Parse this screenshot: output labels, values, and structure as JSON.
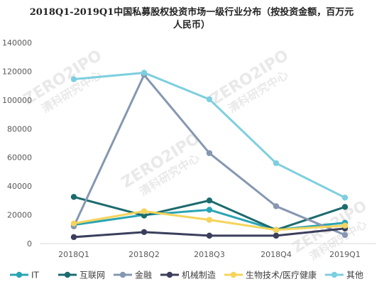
{
  "chart_data": {
    "type": "line",
    "title": "2018Q1-2019Q1中国私募股权投资市场一级行业分布（按投资金额，百万元人民币）",
    "title_lines": [
      "2018Q1-2019Q1中国私募股权投资市场一级行业分布（按投资金额，百万元",
      "人民币）"
    ],
    "categories": [
      "2018Q1",
      "2018Q2",
      "2018Q3",
      "2018Q4",
      "2019Q1"
    ],
    "ylim": [
      0,
      140000
    ],
    "yticks": [
      "0",
      "20000",
      "40000",
      "60000",
      "80000",
      "100000",
      "120000",
      "140000"
    ],
    "ytick_values": [
      0,
      20000,
      40000,
      60000,
      80000,
      100000,
      120000,
      140000
    ],
    "grid": false,
    "legend_position": "bottom",
    "series": [
      {
        "name": "IT",
        "color": "#2aa4b4",
        "values": [
          13000,
          20000,
          23500,
          9500,
          14500
        ]
      },
      {
        "name": "互联网",
        "color": "#1c6b6e",
        "values": [
          32500,
          19500,
          30000,
          9500,
          25500
        ]
      },
      {
        "name": "金融",
        "color": "#8597b1",
        "values": [
          12000,
          117500,
          63000,
          26000,
          6000
        ]
      },
      {
        "name": "机械制造",
        "color": "#3b3f5c",
        "values": [
          4500,
          8000,
          5500,
          5500,
          10500
        ]
      },
      {
        "name": "生物技术/医疗健康",
        "color": "#f5d45a",
        "values": [
          14000,
          22500,
          16500,
          9500,
          12500
        ]
      },
      {
        "name": "其他",
        "color": "#7dcfdf",
        "values": [
          114500,
          119000,
          100500,
          56000,
          32000
        ]
      }
    ],
    "watermark": {
      "text": "ZERO2IPO",
      "sub": "清科研究中心"
    }
  }
}
